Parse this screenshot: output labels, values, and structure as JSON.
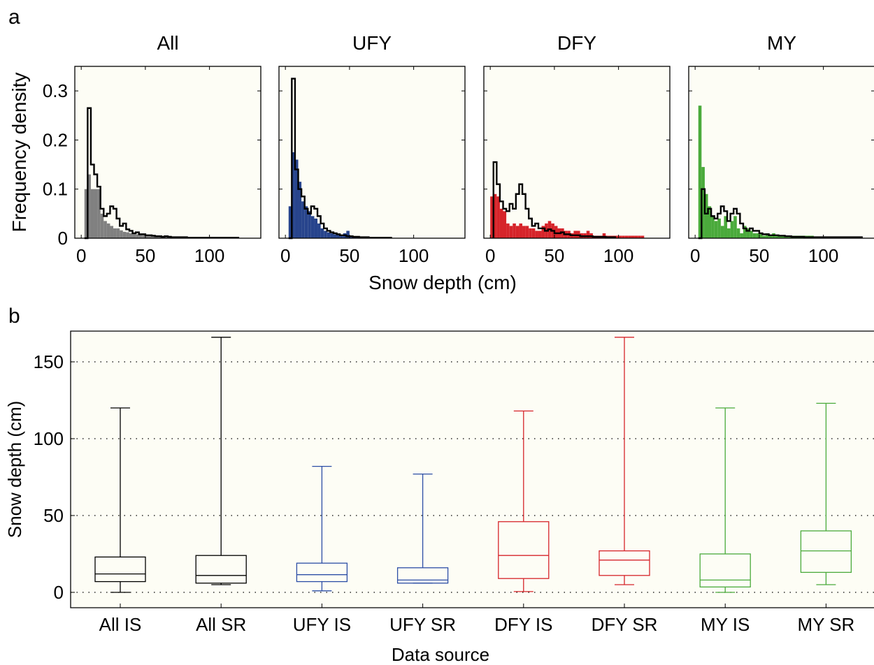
{
  "panel_a_label": "a",
  "panel_b_label": "b",
  "chart_data": [
    {
      "type": "histogram",
      "title": "All",
      "xlabel": "Snow depth (cm)",
      "ylabel": "Frequency density",
      "xlim": [
        -5,
        140
      ],
      "ylim": [
        0,
        0.35
      ],
      "xticks": [
        0,
        50,
        100
      ],
      "yticks": [
        0,
        0.1,
        0.2,
        0.3
      ],
      "ytick_labels": [
        "0",
        "0.1",
        "0.2",
        "0.3"
      ],
      "bin_width": 2.5,
      "bin_start": 2.5,
      "filled_color": "#808080",
      "filled_values": [
        0.1,
        0.13,
        0.1,
        0.1,
        0.1,
        0.05,
        0.035,
        0.03,
        0.025,
        0.02,
        0.02,
        0.016,
        0.013,
        0.012,
        0.01,
        0.009,
        0.008,
        0.007,
        0.006,
        0.006,
        0.005,
        0.004,
        0.004,
        0.003,
        0.003,
        0.003,
        0.002,
        0.002,
        0.002,
        0.002,
        0.001,
        0.001,
        0.001,
        0.001,
        0.001,
        0.001,
        0.001,
        0.001,
        0.001,
        0.001
      ],
      "outline_start": 2.5,
      "outline_values": [
        0.0,
        0.265,
        0.15,
        0.13,
        0.105,
        0.06,
        0.045,
        0.05,
        0.065,
        0.06,
        0.04,
        0.025,
        0.03,
        0.018,
        0.015,
        0.01,
        0.012,
        0.008,
        0.008,
        0.006,
        0.006,
        0.005,
        0.004,
        0.004,
        0.003,
        0.004,
        0.003,
        0.002,
        0.002,
        0.002,
        0.002,
        0.002,
        0.001,
        0.001,
        0.001,
        0.001,
        0.001,
        0.001,
        0.001,
        0.001,
        0.001,
        0.001,
        0.001,
        0.001,
        0.001,
        0.001,
        0.001,
        0.001
      ]
    },
    {
      "type": "histogram",
      "title": "UFY",
      "xlim": [
        -5,
        140
      ],
      "ylim": [
        0,
        0.35
      ],
      "xticks": [
        0,
        50,
        100
      ],
      "bin_width": 2.5,
      "bin_start": 2.5,
      "filled_color": "#27448c",
      "filled_values": [
        0.065,
        0.175,
        0.16,
        0.115,
        0.075,
        0.065,
        0.055,
        0.045,
        0.04,
        0.03,
        0.02,
        0.015,
        0.012,
        0.01,
        0.008,
        0.007,
        0.006,
        0.01,
        0.015,
        0.005,
        0.004,
        0.003,
        0.002,
        0.002,
        0.001,
        0.001
      ],
      "outline_start": 2.5,
      "outline_values": [
        0.0,
        0.325,
        0.14,
        0.1,
        0.085,
        0.06,
        0.05,
        0.065,
        0.06,
        0.045,
        0.03,
        0.02,
        0.015,
        0.012,
        0.01,
        0.008,
        0.006,
        0.006,
        0.004,
        0.004,
        0.003,
        0.003,
        0.002,
        0.002,
        0.002,
        0.001,
        0.001,
        0.001,
        0.001,
        0.001,
        0.001,
        0.001
      ]
    },
    {
      "type": "histogram",
      "title": "DFY",
      "xlim": [
        -5,
        140
      ],
      "ylim": [
        0,
        0.35
      ],
      "xticks": [
        0,
        50,
        100
      ],
      "bin_width": 2.5,
      "bin_start": 0,
      "filled_color": "#d6242a",
      "filled_values": [
        0.085,
        0.09,
        0.085,
        0.06,
        0.055,
        0.03,
        0.025,
        0.03,
        0.025,
        0.03,
        0.025,
        0.025,
        0.02,
        0.02,
        0.015,
        0.015,
        0.025,
        0.03,
        0.035,
        0.03,
        0.025,
        0.02,
        0.02,
        0.015,
        0.015,
        0.01,
        0.015,
        0.015,
        0.01,
        0.01,
        0.015,
        0.01,
        0.005,
        0.005,
        0.005,
        0.01,
        0.005,
        0.005,
        0.005,
        0.005,
        0.005,
        0.005,
        0.005,
        0.005,
        0.005,
        0.005,
        0.005,
        0.005
      ],
      "outline_start": 2.5,
      "outline_values": [
        0.155,
        0.11,
        0.075,
        0.06,
        0.055,
        0.07,
        0.06,
        0.09,
        0.11,
        0.09,
        0.06,
        0.04,
        0.025,
        0.03,
        0.02,
        0.02,
        0.015,
        0.018,
        0.015,
        0.01,
        0.01,
        0.012,
        0.008,
        0.008,
        0.006,
        0.006,
        0.006,
        0.004,
        0.004,
        0.004,
        0.004,
        0.003,
        0.003,
        0.003,
        0.003,
        0.002,
        0.002,
        0.002
      ]
    },
    {
      "type": "histogram",
      "title": "MY",
      "xlim": [
        -5,
        140
      ],
      "ylim": [
        0,
        0.35
      ],
      "xticks": [
        0,
        50,
        100
      ],
      "bin_width": 2.5,
      "bin_start": 2.5,
      "filled_color": "#4aaa3b",
      "filled_values": [
        0.27,
        0.145,
        0.09,
        0.065,
        0.045,
        0.035,
        0.04,
        0.025,
        0.045,
        0.02,
        0.035,
        0.045,
        0.02,
        0.01,
        0.025,
        0.02,
        0.015,
        0.01,
        0.01,
        0.01,
        0.005,
        0.01,
        0.005,
        0.01,
        0.005,
        0.005,
        0.005,
        0.005,
        0.005,
        0.005,
        0.005,
        0.005,
        0.005,
        0.005,
        0.005,
        0.005
      ],
      "outline_start": 2.5,
      "outline_values": [
        0.0,
        0.1,
        0.05,
        0.06,
        0.045,
        0.04,
        0.05,
        0.065,
        0.055,
        0.035,
        0.05,
        0.06,
        0.05,
        0.03,
        0.02,
        0.015,
        0.02,
        0.015,
        0.015,
        0.01,
        0.008,
        0.008,
        0.006,
        0.006,
        0.006,
        0.005,
        0.005,
        0.004,
        0.004,
        0.003,
        0.003,
        0.003,
        0.003,
        0.002,
        0.002,
        0.002,
        0.002,
        0.002,
        0.002,
        0.002,
        0.002,
        0.002,
        0.002,
        0.002,
        0.002,
        0.002,
        0.002,
        0.002,
        0.002,
        0.002,
        0.002
      ]
    },
    {
      "type": "box",
      "xlabel": "Data source",
      "ylabel": "Snow depth (cm)",
      "ylim": [
        -10,
        170
      ],
      "yticks": [
        0,
        50,
        100,
        150
      ],
      "grid": "horizontal dotted",
      "categories": [
        "All IS",
        "All SR",
        "UFY IS",
        "UFY SR",
        "DFY IS",
        "DFY SR",
        "MY IS",
        "MY SR"
      ],
      "colors": [
        "#000000",
        "#000000",
        "#2d4ea6",
        "#2d4ea6",
        "#d6242a",
        "#d6242a",
        "#4aaa3b",
        "#4aaa3b"
      ],
      "boxes": [
        {
          "min": 0,
          "q1": 7,
          "median": 12,
          "q3": 23,
          "max": 120
        },
        {
          "min": 5,
          "q1": 6,
          "median": 11,
          "q3": 24,
          "max": 166
        },
        {
          "min": 1,
          "q1": 7,
          "median": 11.5,
          "q3": 19,
          "max": 82
        },
        {
          "min": 6,
          "q1": 6,
          "median": 8,
          "q3": 16,
          "max": 77
        },
        {
          "min": 0.5,
          "q1": 9,
          "median": 24,
          "q3": 46,
          "max": 118
        },
        {
          "min": 5,
          "q1": 11,
          "median": 21,
          "q3": 27,
          "max": 166
        },
        {
          "min": 0,
          "q1": 3.5,
          "median": 8,
          "q3": 25,
          "max": 120
        },
        {
          "min": 5,
          "q1": 13,
          "median": 27,
          "q3": 40,
          "max": 123
        }
      ]
    }
  ]
}
